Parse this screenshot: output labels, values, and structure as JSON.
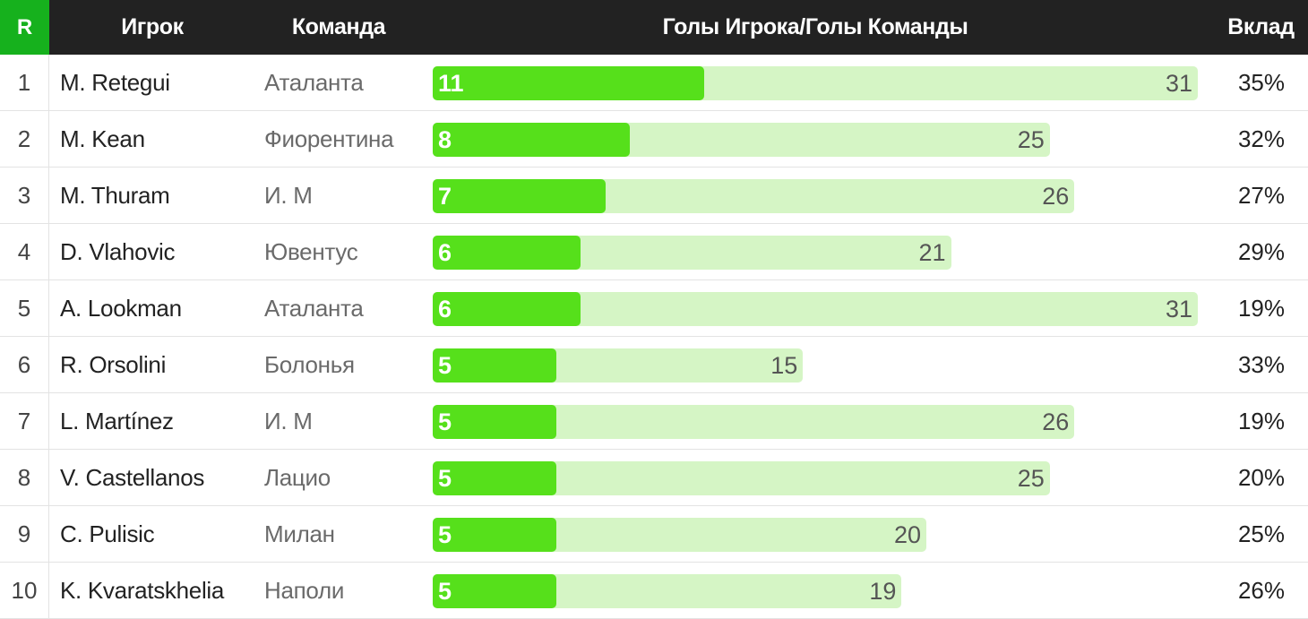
{
  "header": {
    "rank": "R",
    "player": "Игрок",
    "team": "Команда",
    "goals": "Голы Игрока/Голы Команды",
    "contribution": "Вклад"
  },
  "colors": {
    "header_bg": "#222222",
    "rank_header_bg": "#16b11d",
    "player_bar": "#56e01b",
    "team_bar": "#d5f5c5"
  },
  "rows": [
    {
      "rank": "1",
      "player": "M. Retegui",
      "team": "Аталанта",
      "player_goals": "11",
      "team_goals": "31",
      "contribution": "35%"
    },
    {
      "rank": "2",
      "player": "M. Kean",
      "team": "Фиорентина",
      "player_goals": "8",
      "team_goals": "25",
      "contribution": "32%"
    },
    {
      "rank": "3",
      "player": "M. Thuram",
      "team": "И. М",
      "player_goals": "7",
      "team_goals": "26",
      "contribution": "27%"
    },
    {
      "rank": "4",
      "player": "D. Vlahovic",
      "team": "Ювентус",
      "player_goals": "6",
      "team_goals": "21",
      "contribution": "29%"
    },
    {
      "rank": "5",
      "player": "A. Lookman",
      "team": "Аталанта",
      "player_goals": "6",
      "team_goals": "31",
      "contribution": "19%"
    },
    {
      "rank": "6",
      "player": "R. Orsolini",
      "team": "Болонья",
      "player_goals": "5",
      "team_goals": "15",
      "contribution": "33%"
    },
    {
      "rank": "7",
      "player": "L. Martínez",
      "team": "И. М",
      "player_goals": "5",
      "team_goals": "26",
      "contribution": "19%"
    },
    {
      "rank": "8",
      "player": "V. Castellanos",
      "team": "Лацио",
      "player_goals": "5",
      "team_goals": "25",
      "contribution": "20%"
    },
    {
      "rank": "9",
      "player": "C. Pulisic",
      "team": "Милан",
      "player_goals": "5",
      "team_goals": "20",
      "contribution": "25%"
    },
    {
      "rank": "10",
      "player": "K. Kvaratskhelia",
      "team": "Наполи",
      "player_goals": "5",
      "team_goals": "19",
      "contribution": "26%"
    }
  ]
}
